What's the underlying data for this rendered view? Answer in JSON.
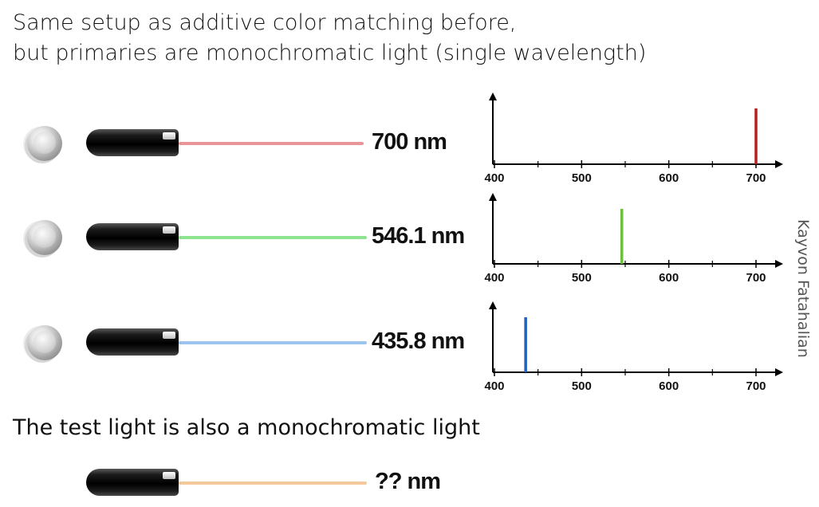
{
  "heading": {
    "line1": "Same setup as additive color matching before,",
    "line2": "but primaries are monochromatic light (single wavelength)"
  },
  "primaries": [
    {
      "label": "700 nm",
      "beam_color": "#e89499",
      "spectral_line_color": "#b3211f",
      "wavelength_nm": 700
    },
    {
      "label": "546.1 nm",
      "beam_color": "#8ee38e",
      "spectral_line_color": "#6dbf3c",
      "wavelength_nm": 546.1
    },
    {
      "label": "435.8 nm",
      "beam_color": "#9cc4ef",
      "spectral_line_color": "#1f5fbf",
      "wavelength_nm": 435.8
    }
  ],
  "test_light": {
    "caption": "The test light is also a monochromatic light",
    "label": "?? nm",
    "beam_color": "#f3c99b"
  },
  "chart_data": [
    {
      "type": "bar",
      "x": [
        700
      ],
      "values": [
        1
      ],
      "xlim": [
        400,
        700
      ],
      "xticks": [
        400,
        500,
        600,
        700
      ],
      "color": "#b3211f"
    },
    {
      "type": "bar",
      "x": [
        546.1
      ],
      "values": [
        1
      ],
      "xlim": [
        400,
        700
      ],
      "xticks": [
        400,
        500,
        600,
        700
      ],
      "color": "#6dbf3c"
    },
    {
      "type": "bar",
      "x": [
        435.8
      ],
      "values": [
        1
      ],
      "xlim": [
        400,
        700
      ],
      "xticks": [
        400,
        500,
        600,
        700
      ],
      "color": "#1f5fbf"
    }
  ],
  "author": "Kayvon Fatahalian"
}
